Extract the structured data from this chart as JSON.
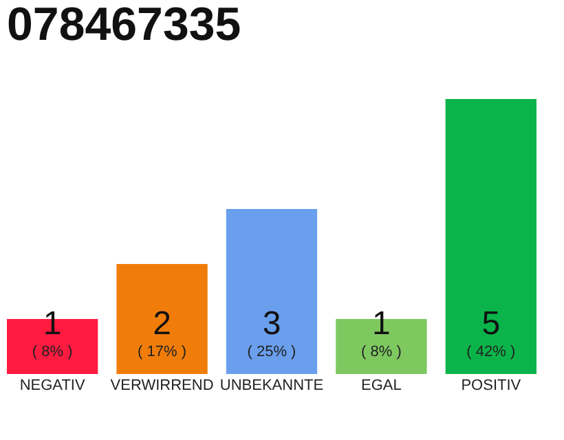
{
  "chart_data": {
    "type": "bar",
    "title": "078467335",
    "categories": [
      "NEGATIV",
      "VERWIRREND",
      "UNBEKANNTE",
      "EGAL",
      "POSITIV"
    ],
    "values": [
      1,
      2,
      3,
      1,
      5
    ],
    "colors": [
      "#ff1a40",
      "#f07d0a",
      "#6a9fee",
      "#7ec860",
      "#0bb44a"
    ],
    "ylim": [
      0,
      5
    ],
    "data_labels": true,
    "annotations": [
      "( 8% )",
      "( 17% )",
      "( 25% )",
      "( 8% )",
      "( 42% )"
    ],
    "grid": false
  }
}
